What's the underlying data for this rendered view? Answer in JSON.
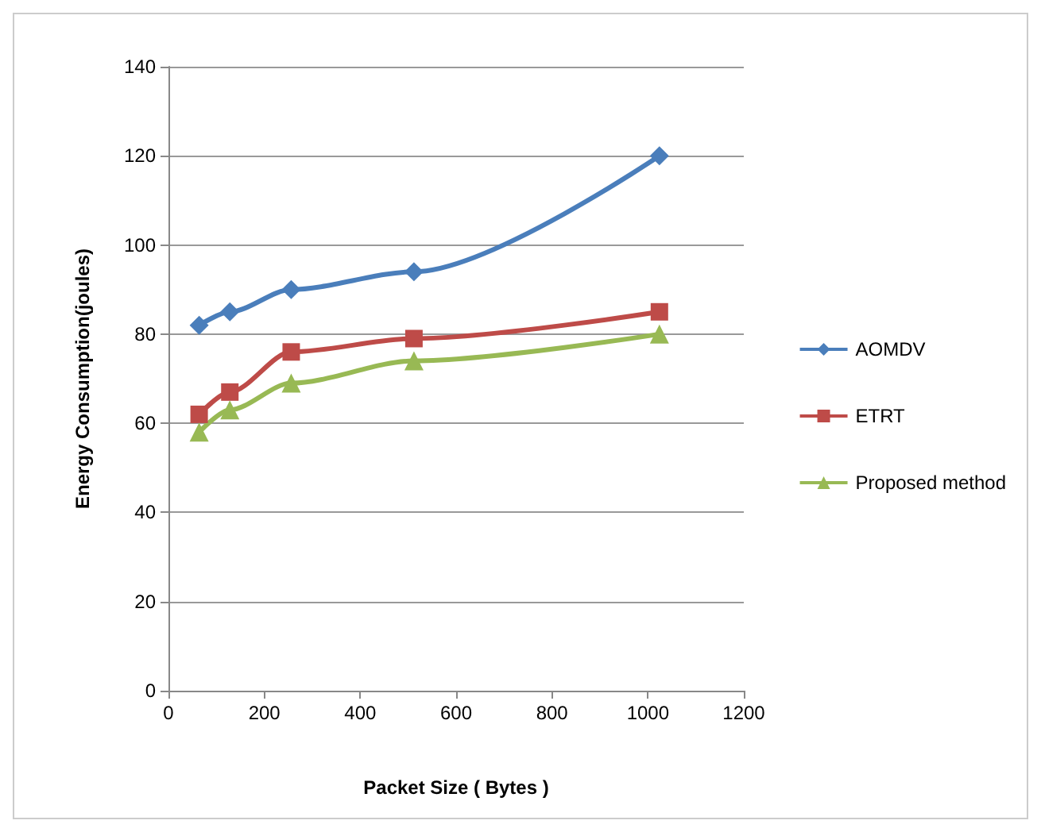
{
  "chart_data": {
    "type": "line",
    "xlabel": "Packet Size ( Bytes )",
    "ylabel": "Energy Consumption(joules)",
    "x": [
      64,
      128,
      256,
      512,
      1024
    ],
    "series": [
      {
        "name": "AOMDV",
        "color": "#4a7ebb",
        "marker": "diamond",
        "values": [
          82,
          85,
          90,
          94,
          120
        ]
      },
      {
        "name": "ETRT",
        "color": "#be4b48",
        "marker": "square",
        "values": [
          62,
          67,
          76,
          79,
          85
        ]
      },
      {
        "name": "Proposed method",
        "color": "#98b954",
        "marker": "triangle",
        "values": [
          58,
          63,
          69,
          74,
          80
        ]
      }
    ],
    "xlim": [
      0,
      1200
    ],
    "xticks": [
      0,
      200,
      400,
      600,
      800,
      1000,
      1200
    ],
    "ylim": [
      0,
      140
    ],
    "yticks": [
      0,
      20,
      40,
      60,
      80,
      100,
      120,
      140
    ],
    "grid": "y",
    "legend": "right"
  }
}
